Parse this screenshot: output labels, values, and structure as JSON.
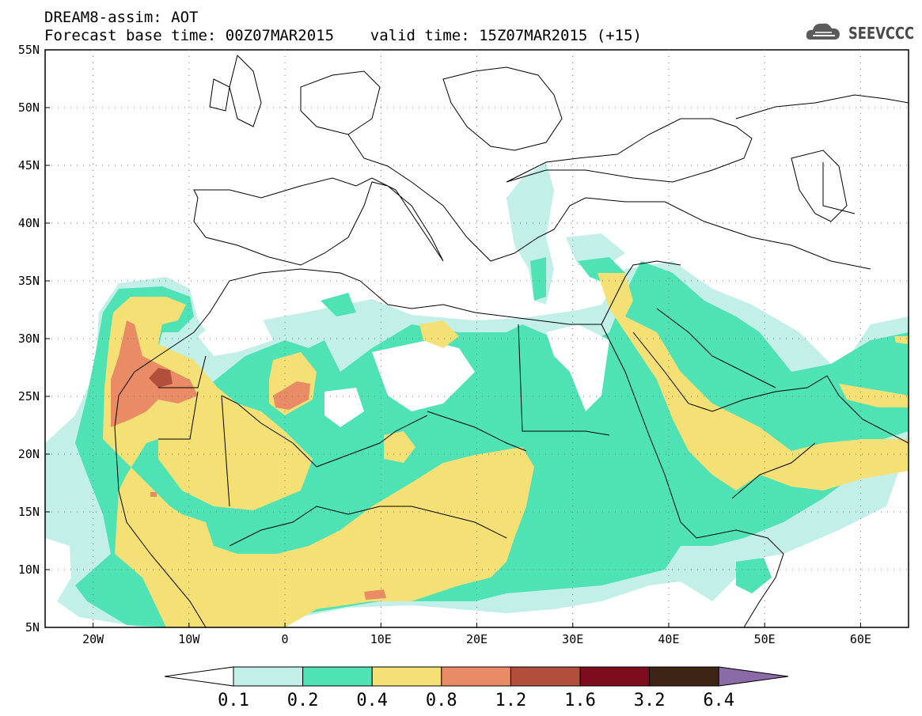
{
  "header": {
    "line1": "DREAM8-assim: AOT",
    "line2": "Forecast base time: 00Z07MAR2015    valid time: 15Z07MAR2015 (+15)"
  },
  "logo": {
    "text": "SEEVCCC",
    "icon": "cloud-logo-icon"
  },
  "map": {
    "lat_labels": [
      "55N",
      "50N",
      "45N",
      "40N",
      "35N",
      "30N",
      "25N",
      "20N",
      "15N",
      "10N",
      "5N"
    ],
    "lon_labels": [
      "20W",
      "10W",
      "0",
      "10E",
      "20E",
      "30E",
      "40E",
      "50E",
      "60E"
    ],
    "grid": true
  },
  "legend": {
    "labels": [
      "0.1",
      "0.2",
      "0.4",
      "0.8",
      "1.2",
      "1.6",
      "3.2",
      "6.4"
    ],
    "colors": [
      "#ffffff",
      "#c3efe9",
      "#4fe2b5",
      "#f5e075",
      "#e98c66",
      "#b24e3c",
      "#7d0c1d",
      "#3d2414",
      "#8b6aa8"
    ]
  },
  "colors": {
    "c1": "#c3efe9",
    "c2": "#4fe2b5",
    "c3": "#f5e075",
    "c4": "#e98c66",
    "c5": "#b24e3c"
  }
}
